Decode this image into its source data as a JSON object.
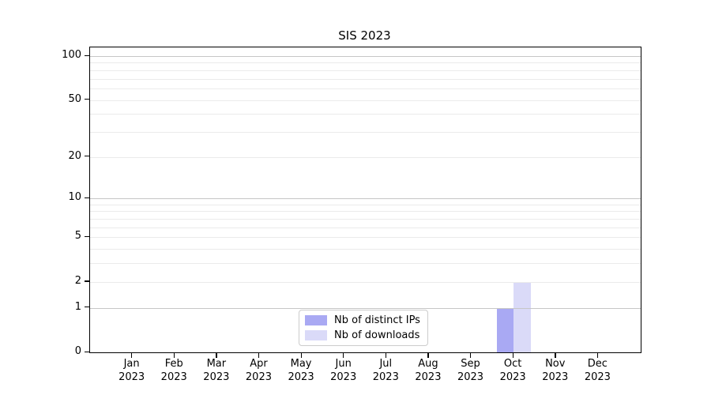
{
  "chart_data": {
    "type": "bar",
    "title": "SIS 2023",
    "categories": [
      "Jan",
      "Feb",
      "Mar",
      "Apr",
      "May",
      "Jun",
      "Jul",
      "Aug",
      "Sep",
      "Oct",
      "Nov",
      "Dec"
    ],
    "category_year": "2023",
    "series": [
      {
        "name": "Nb of distinct IPs",
        "color": "#a9a9f3",
        "values": [
          0,
          0,
          0,
          0,
          0,
          0,
          0,
          0,
          0,
          1,
          0,
          0
        ]
      },
      {
        "name": "Nb of downloads",
        "color": "#dadaf8",
        "values": [
          0,
          0,
          0,
          0,
          0,
          0,
          0,
          0,
          0,
          2,
          0,
          0
        ]
      }
    ],
    "yscale": "symlog",
    "ylim": [
      0,
      113
    ],
    "yticks": [
      0,
      1,
      2,
      5,
      10,
      20,
      50,
      100
    ],
    "major_gridlines": [
      1,
      10,
      100
    ],
    "minor_gridlines": [
      2,
      3,
      4,
      5,
      6,
      7,
      8,
      9,
      20,
      30,
      40,
      50,
      60,
      70,
      80,
      90
    ],
    "grid": true,
    "legend_position": "lower center",
    "axis_color": "#000000",
    "major_grid_color": "#c6c6c6",
    "minor_grid_color": "#ebebeb"
  }
}
